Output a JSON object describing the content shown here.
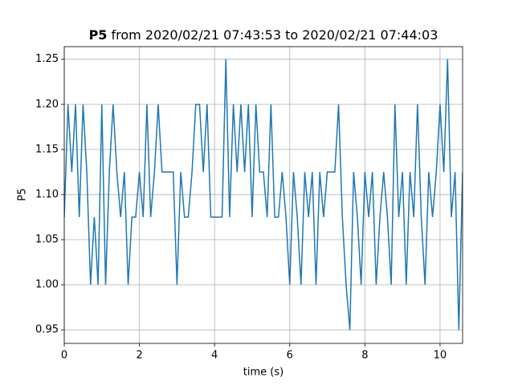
{
  "chart_data": {
    "type": "line",
    "title": {
      "series": "P5",
      "range": "from 2020/02/21 07:43:53 to 2020/02/21 07:44:03"
    },
    "xlabel": "time (s)",
    "ylabel": "P5",
    "xlim": [
      0,
      10.6
    ],
    "xticks": [
      0,
      2,
      4,
      6,
      8,
      10
    ],
    "ylim": [
      0.935,
      1.264
    ],
    "yticks": [
      0.95,
      {
        "value": 1.0,
        "label": "1.00"
      },
      1.05,
      {
        "value": 1.1,
        "label": "1.10"
      },
      1.15,
      {
        "value": 1.2,
        "label": "1.20"
      },
      1.25
    ],
    "grid": true,
    "x": [
      0,
      0.1,
      0.2,
      0.3,
      0.4,
      0.5,
      0.6,
      0.7,
      0.8,
      0.9,
      1,
      1.1,
      1.2,
      1.3,
      1.4,
      1.5,
      1.6,
      1.7,
      1.8,
      1.9,
      2,
      2.1,
      2.2,
      2.3,
      2.4,
      2.5,
      2.6,
      2.7,
      2.8,
      2.9,
      3,
      3.1,
      3.2,
      3.3,
      3.4,
      3.5,
      3.6,
      3.7,
      3.8,
      3.9,
      4,
      4.1,
      4.2,
      4.3,
      4.4,
      4.5,
      4.6,
      4.7,
      4.8,
      4.9,
      5,
      5.1,
      5.2,
      5.3,
      5.4,
      5.5,
      5.6,
      5.7,
      5.8,
      5.9,
      6,
      6.1,
      6.2,
      6.3,
      6.4,
      6.5,
      6.6,
      6.7,
      6.8,
      6.9,
      7,
      7.1,
      7.2,
      7.3,
      7.4,
      7.5,
      7.6,
      7.7,
      7.8,
      7.9,
      8,
      8.1,
      8.2,
      8.3,
      8.4,
      8.5,
      8.6,
      8.7,
      8.8,
      8.9,
      9,
      9.1,
      9.2,
      9.3,
      9.4,
      9.5,
      9.6,
      9.7,
      9.8,
      9.9,
      10,
      10.1,
      10.2,
      10.3,
      10.4,
      10.5,
      10.6
    ],
    "series": [
      {
        "name": "P5",
        "color": "#1f77b4",
        "values": [
          1.075,
          1.2,
          1.125,
          1.2,
          1.075,
          1.2,
          1.125,
          1.0,
          1.075,
          1.0,
          1.2,
          1.0,
          1.125,
          1.2,
          1.125,
          1.075,
          1.125,
          1.0,
          1.075,
          1.075,
          1.125,
          1.075,
          1.2,
          1.075,
          1.125,
          1.2,
          1.125,
          1.125,
          1.125,
          1.125,
          1.0,
          1.125,
          1.075,
          1.075,
          1.125,
          1.2,
          1.2,
          1.125,
          1.2,
          1.075,
          1.075,
          1.075,
          1.075,
          1.25,
          1.075,
          1.2,
          1.125,
          1.2,
          1.125,
          1.2,
          1.075,
          1.2,
          1.125,
          1.125,
          1.075,
          1.2,
          1.075,
          1.075,
          1.125,
          1.075,
          1.0,
          1.125,
          1.075,
          1.0,
          1.125,
          1.075,
          1.125,
          1.0,
          1.125,
          1.075,
          1.125,
          1.125,
          1.125,
          1.2,
          1.075,
          1.0,
          0.95,
          1.125,
          1.075,
          1.0,
          1.125,
          1.075,
          1.125,
          1.0,
          1.075,
          1.125,
          1.075,
          1.0,
          1.2,
          1.075,
          1.125,
          1.0,
          1.125,
          1.075,
          1.2,
          1.075,
          1.0,
          1.125,
          1.075,
          1.125,
          1.2,
          1.125,
          1.25,
          1.075,
          1.125,
          0.95,
          1.125
        ]
      }
    ]
  }
}
